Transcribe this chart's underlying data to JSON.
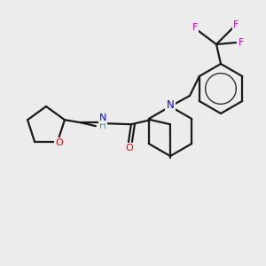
{
  "background_color": "#ececec",
  "figsize": [
    3.0,
    3.0
  ],
  "dpi": 100,
  "bond_color": "#1a1a1a",
  "bond_lw": 1.6,
  "atom_colors": {
    "O": "#ff0000",
    "N": "#0000ee",
    "NH": "#4a9090",
    "F": "#cc00cc",
    "C": "#1a1a1a"
  },
  "font_size": 8.5
}
